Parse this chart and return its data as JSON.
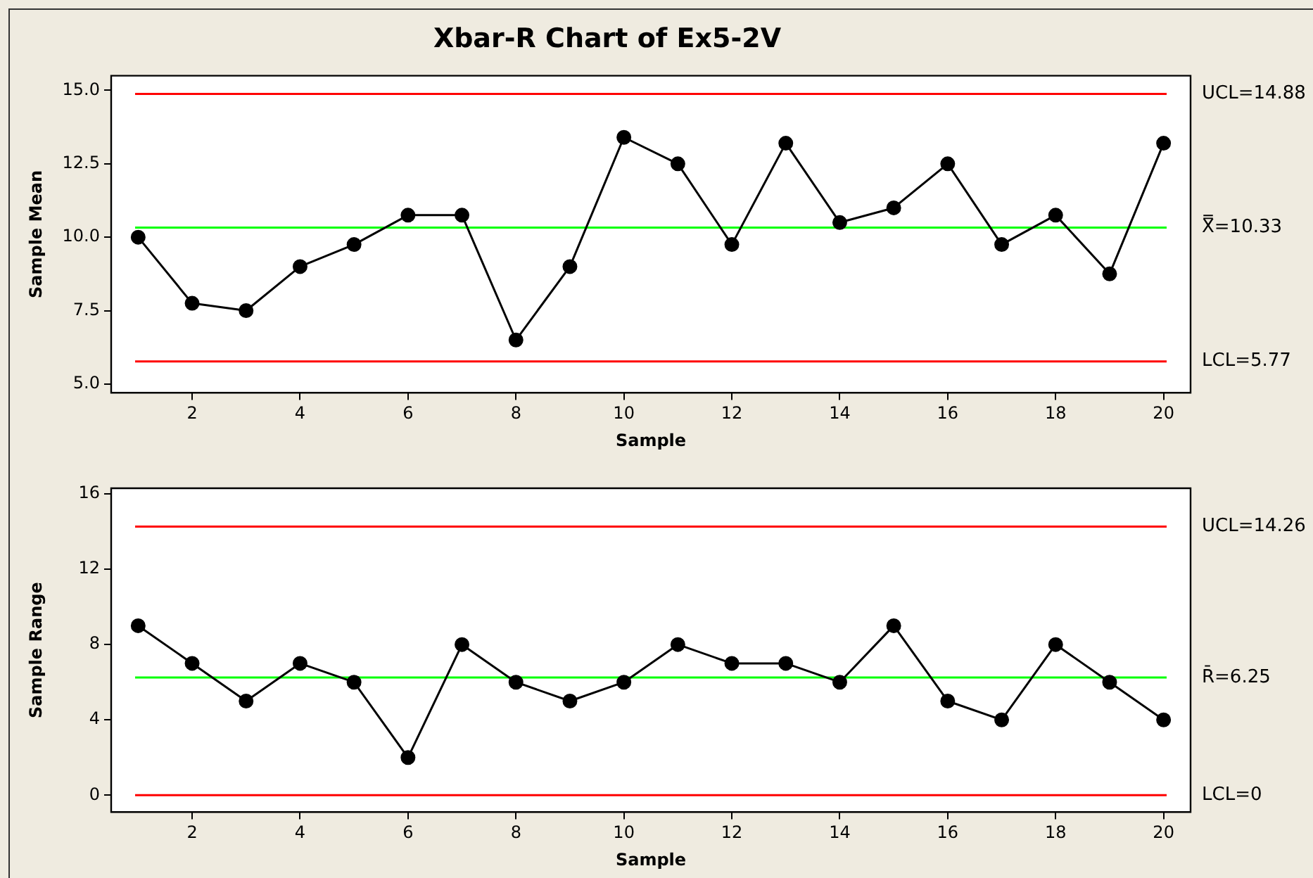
{
  "chart_data": [
    {
      "type": "line",
      "title": "Xbar-R Chart of Ex5-2V",
      "xlabel": "Sample",
      "ylabel": "Sample Mean",
      "x": [
        1,
        2,
        3,
        4,
        5,
        6,
        7,
        8,
        9,
        10,
        11,
        12,
        13,
        14,
        15,
        16,
        17,
        18,
        19,
        20
      ],
      "series": [
        {
          "color": "#000000",
          "values": [
            10,
            7.75,
            7.5,
            9,
            9.75,
            10.75,
            10.75,
            6.5,
            9,
            13.4,
            12.5,
            9.75,
            13.2,
            10.5,
            11,
            12.5,
            9.75,
            10.75,
            8.75,
            13.2
          ]
        }
      ],
      "xlim": [
        0.5,
        20.5
      ],
      "xticks": [
        2,
        4,
        6,
        8,
        10,
        12,
        14,
        16,
        18,
        20
      ],
      "ylim": [
        4.7,
        15.5
      ],
      "yticks": [
        {
          "value": 5,
          "label": "5.0"
        },
        {
          "value": 7.5,
          "label": "7.5"
        },
        {
          "value": 10,
          "label": "10.0"
        },
        {
          "value": 12.5,
          "label": "12.5"
        },
        {
          "value": 15,
          "label": "15.0"
        }
      ],
      "ref_lines": [
        {
          "axis": "y",
          "value": 14.88,
          "label": "UCL=14.88",
          "color": "#ff0000"
        },
        {
          "axis": "y",
          "value": 10.33,
          "label": "X̿=10.33",
          "color": "#00ff00"
        },
        {
          "axis": "y",
          "value": 5.77,
          "label": "LCL=5.77",
          "color": "#ff0000"
        }
      ],
      "grid": false,
      "legend": false,
      "marker": "circle",
      "line_style": "solid"
    },
    {
      "type": "line",
      "xlabel": "Sample",
      "ylabel": "Sample Range",
      "x": [
        1,
        2,
        3,
        4,
        5,
        6,
        7,
        8,
        9,
        10,
        11,
        12,
        13,
        14,
        15,
        16,
        17,
        18,
        19,
        20
      ],
      "series": [
        {
          "color": "#000000",
          "values": [
            9,
            7,
            5,
            7,
            6,
            2,
            8,
            6,
            5,
            6,
            8,
            7,
            7,
            6,
            9,
            5,
            4,
            8,
            6,
            4
          ]
        }
      ],
      "xlim": [
        0.5,
        20.5
      ],
      "xticks": [
        2,
        4,
        6,
        8,
        10,
        12,
        14,
        16,
        18,
        20
      ],
      "ylim": [
        -0.9,
        16.3
      ],
      "yticks": [
        0,
        4,
        8,
        12,
        16
      ],
      "ref_lines": [
        {
          "axis": "y",
          "value": 14.26,
          "label": "UCL=14.26",
          "color": "#ff0000"
        },
        {
          "axis": "y",
          "value": 6.25,
          "label": "R̄=6.25",
          "color": "#00ff00"
        },
        {
          "axis": "y",
          "value": 0,
          "label": "LCL=0",
          "color": "#ff0000"
        }
      ],
      "grid": false,
      "legend": false,
      "marker": "circle",
      "line_style": "solid"
    }
  ]
}
